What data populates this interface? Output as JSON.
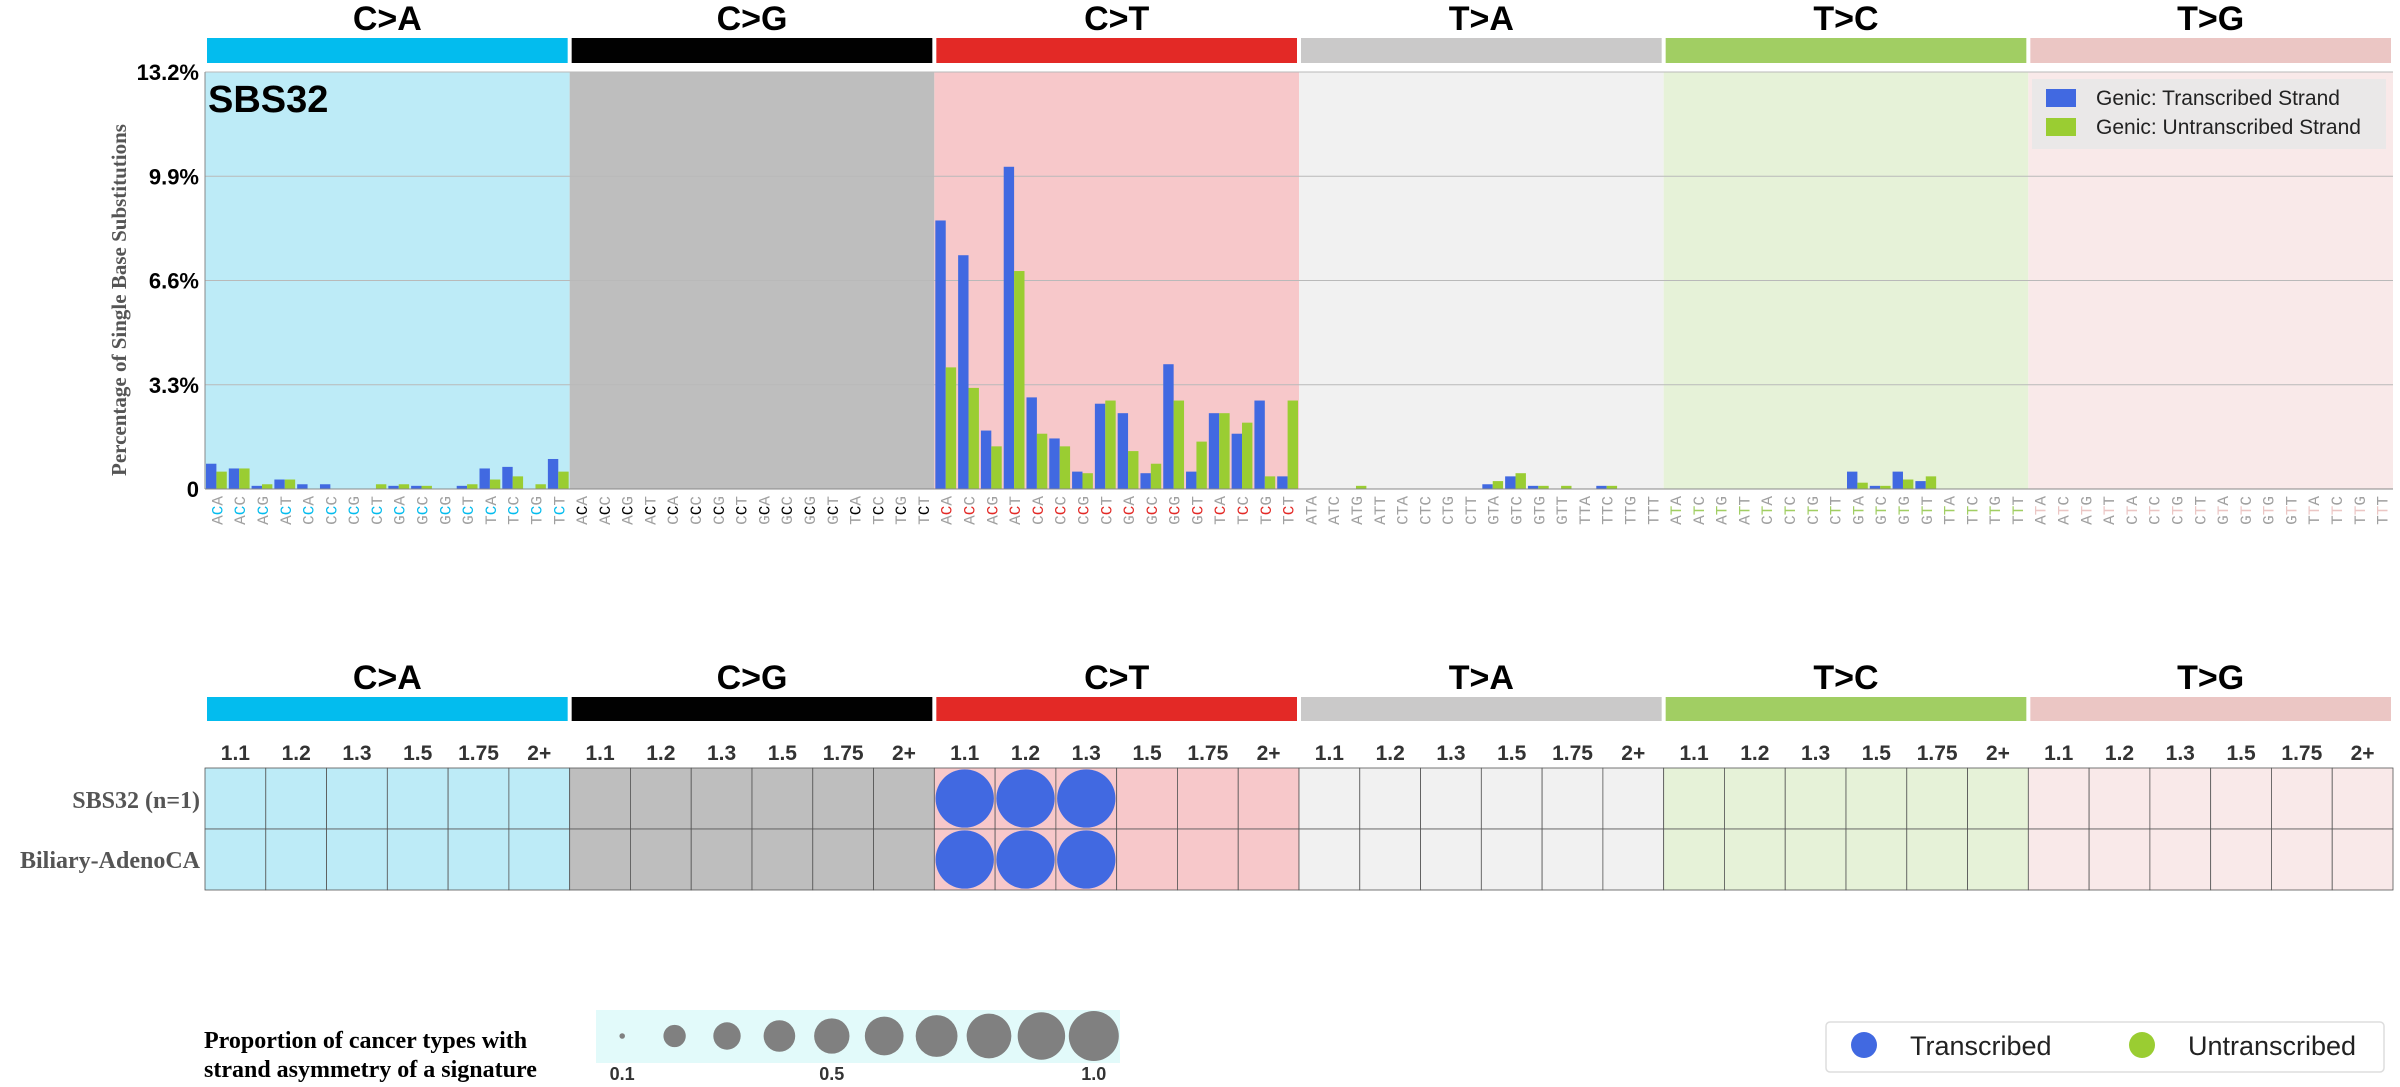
{
  "chart_data": [
    {
      "type": "bar",
      "title": "SBS32",
      "ylabel": "Percentage of Single Base Substitutions",
      "ylim": [
        0,
        13.2
      ],
      "yticks": [
        "0",
        "3.3%",
        "6.6%",
        "9.9%",
        "13.2%"
      ],
      "ytick_values": [
        0,
        3.3,
        6.6,
        9.9,
        13.2
      ],
      "grid": true,
      "legend_position": "top-right",
      "mutation_types": [
        {
          "label": "C>A",
          "color": "#03BCEE",
          "bg": "#BDEBF7"
        },
        {
          "label": "C>G",
          "color": "#010101",
          "bg": "#BEBEBE"
        },
        {
          "label": "C>T",
          "color": "#E32926",
          "bg": "#F7C8CA"
        },
        {
          "label": "T>A",
          "color": "#CAC9C9",
          "bg": "#F1F1F1"
        },
        {
          "label": "T>C",
          "color": "#A1CE63",
          "bg": "#E6F2D8"
        },
        {
          "label": "T>G",
          "color": "#EBC6C4",
          "bg": "#F9E9E9"
        }
      ],
      "contexts": [
        "ACA",
        "ACC",
        "ACG",
        "ACT",
        "CCA",
        "CCC",
        "CCG",
        "CCT",
        "GCA",
        "GCC",
        "GCG",
        "GCT",
        "TCA",
        "TCC",
        "TCG",
        "TCT",
        "ACA",
        "ACC",
        "ACG",
        "ACT",
        "CCA",
        "CCC",
        "CCG",
        "CCT",
        "GCA",
        "GCC",
        "GCG",
        "GCT",
        "TCA",
        "TCC",
        "TCG",
        "TCT",
        "ACA",
        "ACC",
        "ACG",
        "ACT",
        "CCA",
        "CCC",
        "CCG",
        "CCT",
        "GCA",
        "GCC",
        "GCG",
        "GCT",
        "TCA",
        "TCC",
        "TCG",
        "TCT",
        "ATA",
        "ATC",
        "ATG",
        "ATT",
        "CTA",
        "CTC",
        "CTG",
        "CTT",
        "GTA",
        "GTC",
        "GTG",
        "GTT",
        "TTA",
        "TTC",
        "TTG",
        "TTT",
        "ATA",
        "ATC",
        "ATG",
        "ATT",
        "CTA",
        "CTC",
        "CTG",
        "CTT",
        "GTA",
        "GTC",
        "GTG",
        "GTT",
        "TTA",
        "TTC",
        "TTG",
        "TTT",
        "ATA",
        "ATC",
        "ATG",
        "ATT",
        "CTA",
        "CTC",
        "CTG",
        "CTT",
        "GTA",
        "GTC",
        "GTG",
        "GTT",
        "TTA",
        "TTC",
        "TTG",
        "TTT"
      ],
      "series": [
        {
          "name": "Genic: Transcribed Strand",
          "color": "#4169E1",
          "values": [
            0.8,
            0.65,
            0.1,
            0.3,
            0.15,
            0.15,
            0,
            0,
            0.1,
            0.1,
            0,
            0.1,
            0.65,
            0.7,
            0,
            0.95,
            0,
            0,
            0,
            0,
            0,
            0,
            0,
            0,
            0,
            0,
            0,
            0,
            0,
            0,
            0,
            0,
            8.5,
            7.4,
            1.85,
            10.2,
            2.9,
            1.6,
            0.55,
            2.7,
            2.4,
            0.5,
            3.95,
            0.55,
            2.4,
            1.75,
            2.8,
            0.4,
            0,
            0,
            0,
            0,
            0,
            0,
            0,
            0,
            0.15,
            0.4,
            0.1,
            0,
            0,
            0.1,
            0,
            0,
            0,
            0,
            0,
            0,
            0,
            0,
            0,
            0,
            0.55,
            0.1,
            0.55,
            0.25,
            0,
            0,
            0,
            0,
            0,
            0,
            0,
            0,
            0,
            0,
            0,
            0,
            0,
            0,
            0,
            0,
            0,
            0,
            0,
            0
          ]
        },
        {
          "name": "Genic: Untranscribed Strand",
          "color": "#9ACD32",
          "values": [
            0.55,
            0.65,
            0.15,
            0.3,
            0,
            0,
            0,
            0.15,
            0.15,
            0.1,
            0,
            0.15,
            0.3,
            0.4,
            0.15,
            0.55,
            0,
            0,
            0,
            0,
            0,
            0,
            0,
            0,
            0,
            0,
            0,
            0,
            0,
            0,
            0,
            0,
            3.85,
            3.2,
            1.35,
            6.9,
            1.75,
            1.35,
            0.5,
            2.8,
            1.2,
            0.8,
            2.8,
            1.5,
            2.4,
            2.1,
            0.4,
            2.8,
            0,
            0,
            0.1,
            0,
            0,
            0,
            0,
            0,
            0.25,
            0.5,
            0.1,
            0.1,
            0,
            0.1,
            0,
            0,
            0,
            0,
            0,
            0,
            0,
            0,
            0,
            0,
            0.2,
            0.1,
            0.3,
            0.4,
            0,
            0,
            0,
            0,
            0,
            0,
            0,
            0,
            0,
            0,
            0,
            0,
            0,
            0,
            0,
            0,
            0,
            0,
            0,
            0
          ]
        }
      ]
    },
    {
      "type": "table",
      "mutation_types": [
        "C>A",
        "C>G",
        "C>T",
        "T>A",
        "T>C",
        "T>G"
      ],
      "fold_bins": [
        "1.1",
        "1.2",
        "1.3",
        "1.5",
        "1.75",
        "2+"
      ],
      "rows": [
        "SBS32 (n=1)",
        "Biliary-AdenoCA"
      ],
      "circles": [
        {
          "row": 0,
          "type": 2,
          "bin": 0,
          "strand": "Transcribed",
          "proportion": 1.0
        },
        {
          "row": 0,
          "type": 2,
          "bin": 1,
          "strand": "Transcribed",
          "proportion": 1.0
        },
        {
          "row": 0,
          "type": 2,
          "bin": 2,
          "strand": "Transcribed",
          "proportion": 1.0
        },
        {
          "row": 1,
          "type": 2,
          "bin": 0,
          "strand": "Transcribed",
          "proportion": 1.0
        },
        {
          "row": 1,
          "type": 2,
          "bin": 1,
          "strand": "Transcribed",
          "proportion": 1.0
        },
        {
          "row": 1,
          "type": 2,
          "bin": 2,
          "strand": "Transcribed",
          "proportion": 1.0
        }
      ],
      "strand_colors": {
        "Transcribed": "#4169E1",
        "Untranscribed": "#9ACD32"
      },
      "legend": {
        "entries": [
          "Transcribed",
          "Untranscribed"
        ]
      },
      "size_legend": {
        "title_line1": "Proportion of cancer types with",
        "title_line2": "strand asymmetry of a signature",
        "values": [
          0.1,
          0.2,
          0.3,
          0.4,
          0.5,
          0.6,
          0.7,
          0.8,
          0.9,
          1.0
        ],
        "tick_labels": [
          {
            "label": "0.1",
            "value": 0.1
          },
          {
            "label": "0.5",
            "value": 0.5
          },
          {
            "label": "1.0",
            "value": 1.0
          }
        ]
      }
    }
  ]
}
